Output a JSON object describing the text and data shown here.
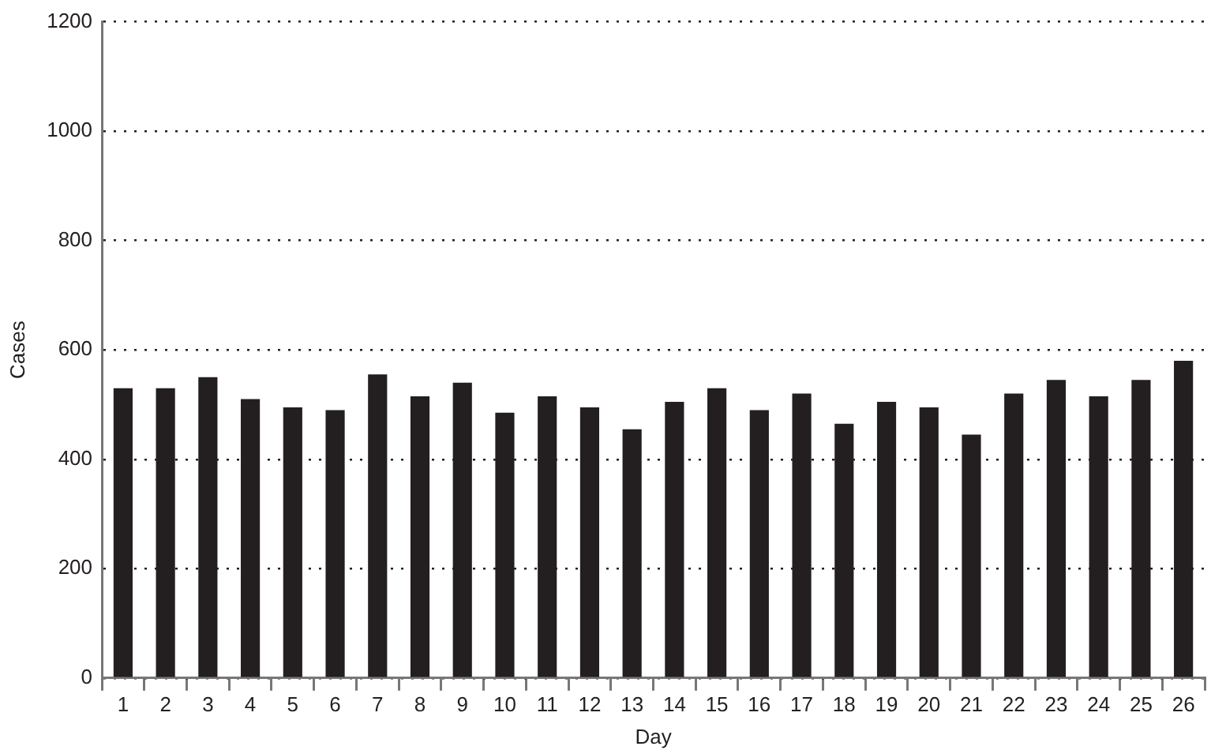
{
  "chart_data": {
    "type": "bar",
    "xlabel": "Day",
    "ylabel": "Cases",
    "categories": [
      "1",
      "2",
      "3",
      "4",
      "5",
      "6",
      "7",
      "8",
      "9",
      "10",
      "11",
      "12",
      "13",
      "14",
      "15",
      "16",
      "17",
      "18",
      "19",
      "20",
      "21",
      "22",
      "23",
      "24",
      "25",
      "26"
    ],
    "values": [
      530,
      530,
      550,
      510,
      495,
      490,
      555,
      515,
      540,
      485,
      515,
      495,
      455,
      505,
      530,
      490,
      520,
      465,
      505,
      495,
      445,
      520,
      545,
      515,
      545,
      580
    ],
    "color": "#231f20",
    "ylim": [
      0,
      1200
    ],
    "yticks": [
      0,
      200,
      400,
      600,
      800,
      1000,
      1200
    ],
    "grid": "y",
    "legend": false
  }
}
